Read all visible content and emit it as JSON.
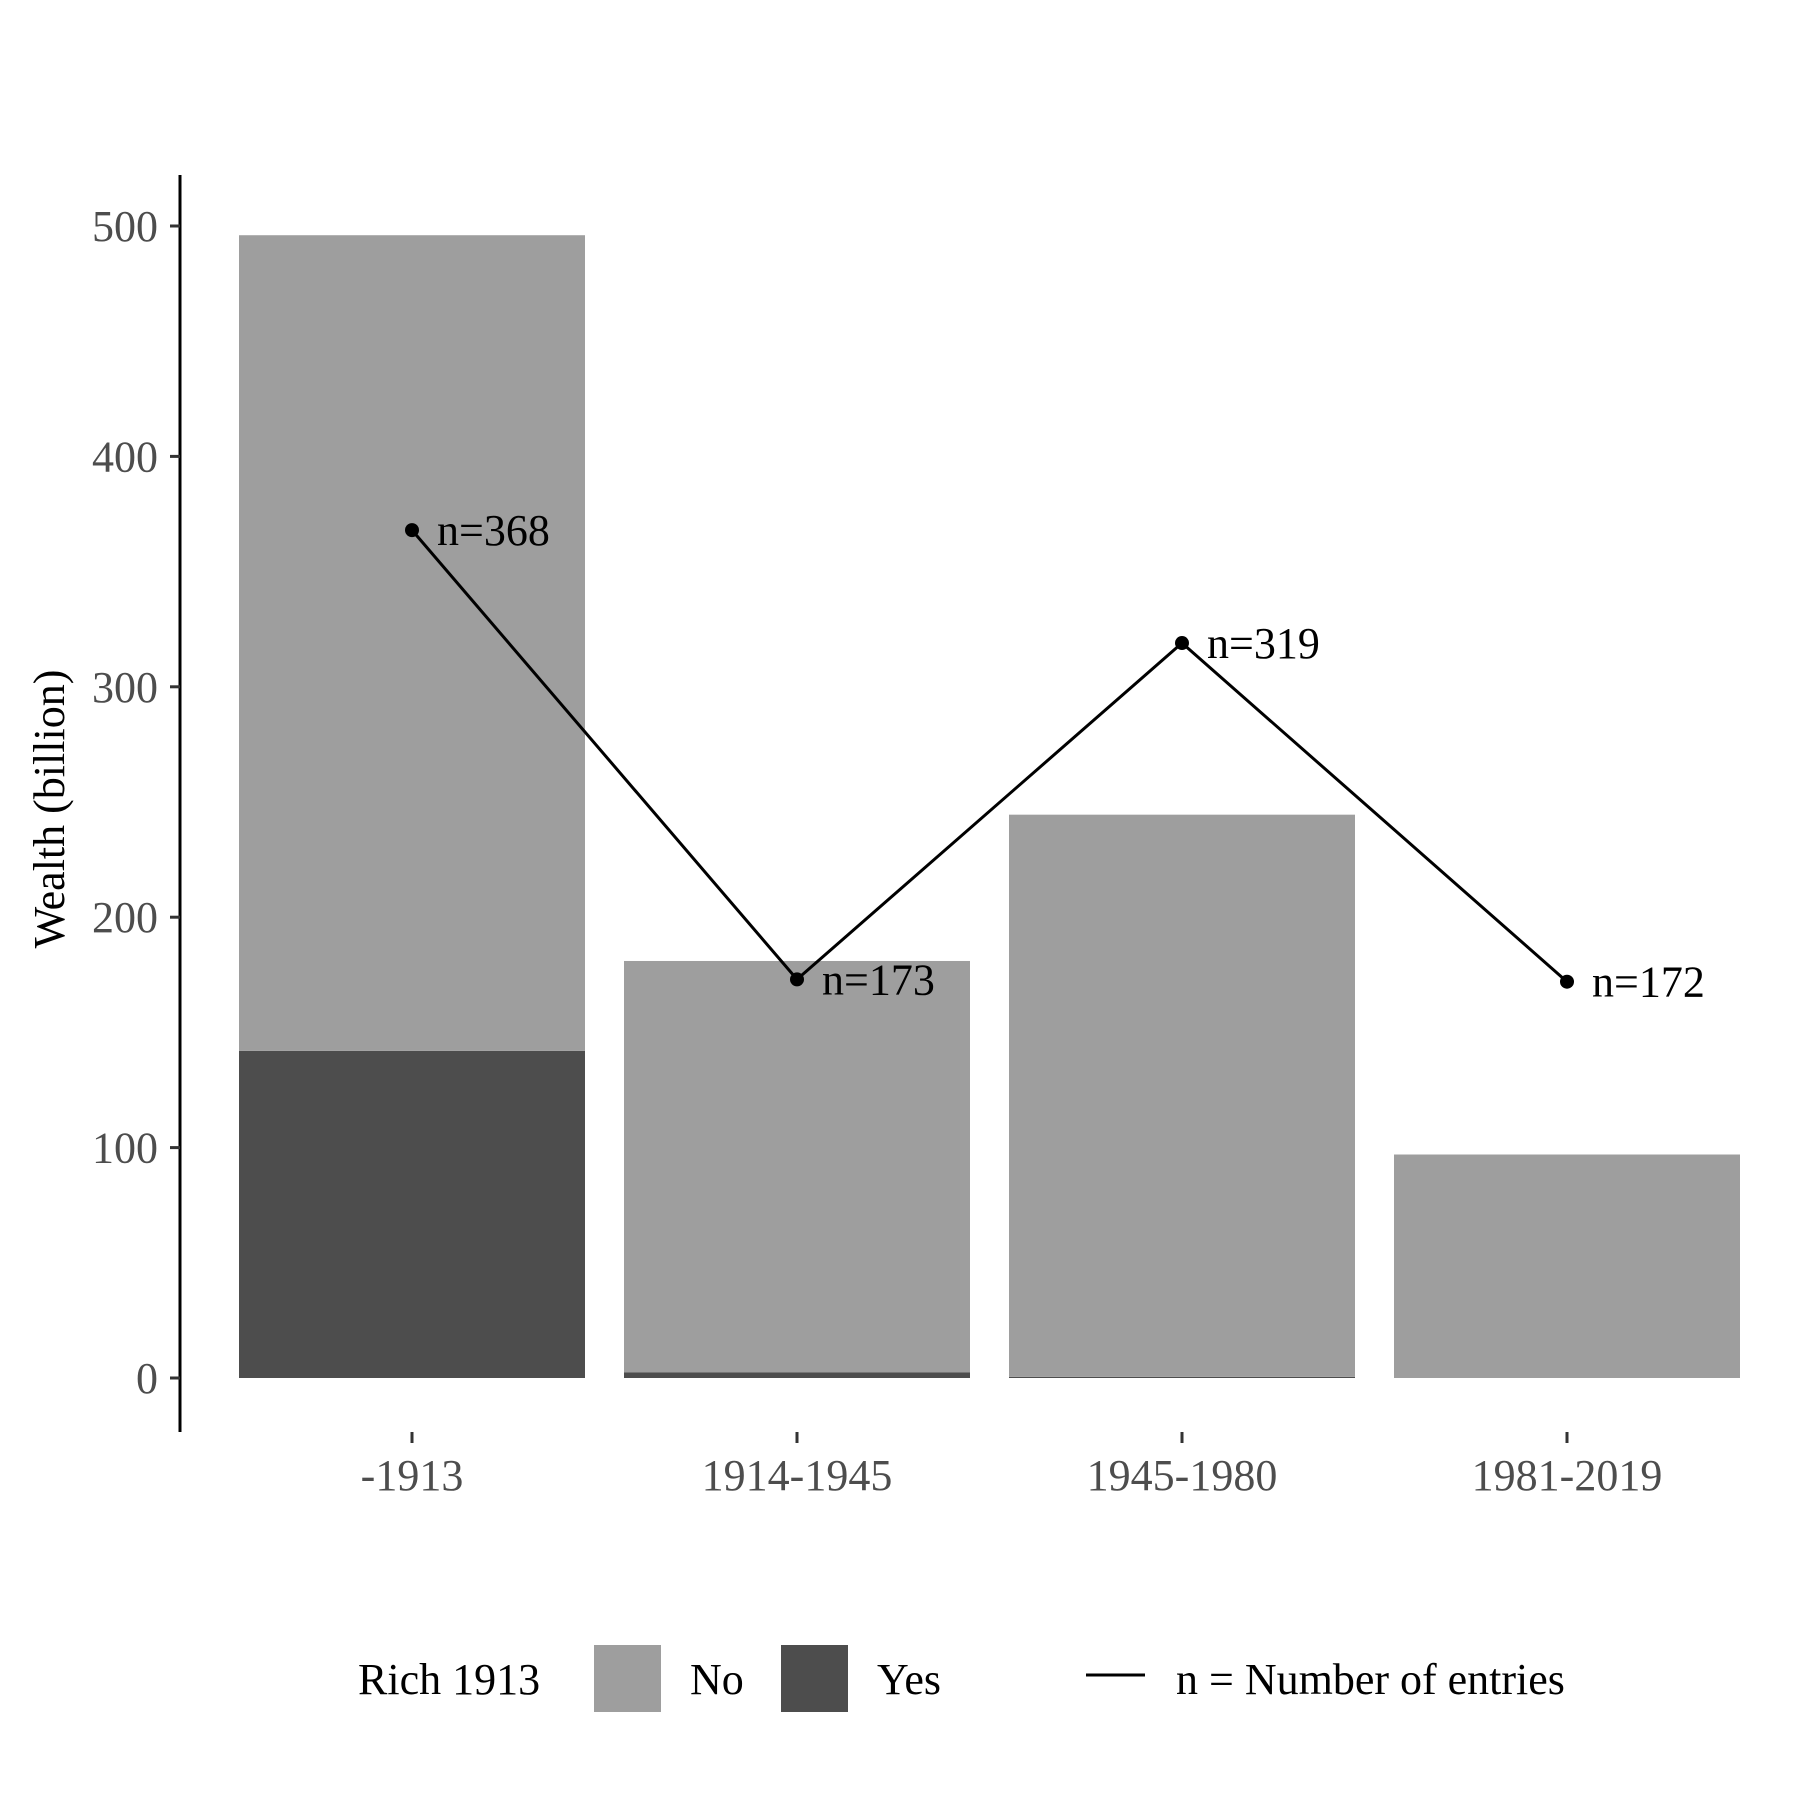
{
  "chart_data": {
    "type": "bar",
    "stacked": true,
    "categories": [
      "-1913",
      "1914-1945",
      "1945-1980",
      "1981-2019"
    ],
    "ylabel": "Wealth (billion)",
    "xlabel": "",
    "ylim": [
      0,
      520
    ],
    "yticks": [
      0,
      100,
      200,
      300,
      400,
      500
    ],
    "grid": false,
    "legend_placement": "bottom",
    "series": [
      {
        "name": "Yes",
        "color": "#4d4d4d",
        "values": [
          142,
          2.5,
          0.5,
          0
        ]
      },
      {
        "name": "No",
        "color": "#9e9e9e",
        "values": [
          354,
          178.5,
          244,
          97
        ]
      }
    ],
    "line": {
      "name": "n = Number of entries",
      "color": "#000000",
      "values": [
        368,
        173,
        319,
        172
      ],
      "labels": [
        "n=368",
        "n=173",
        "n=319",
        "n=172"
      ]
    },
    "legend": {
      "title": "Rich 1913",
      "fill_entries": [
        {
          "label": "No",
          "color": "#9e9e9e"
        },
        {
          "label": "Yes",
          "color": "#4d4d4d"
        }
      ],
      "line_entry": {
        "label": "n = Number of entries",
        "color": "#000000"
      }
    }
  }
}
